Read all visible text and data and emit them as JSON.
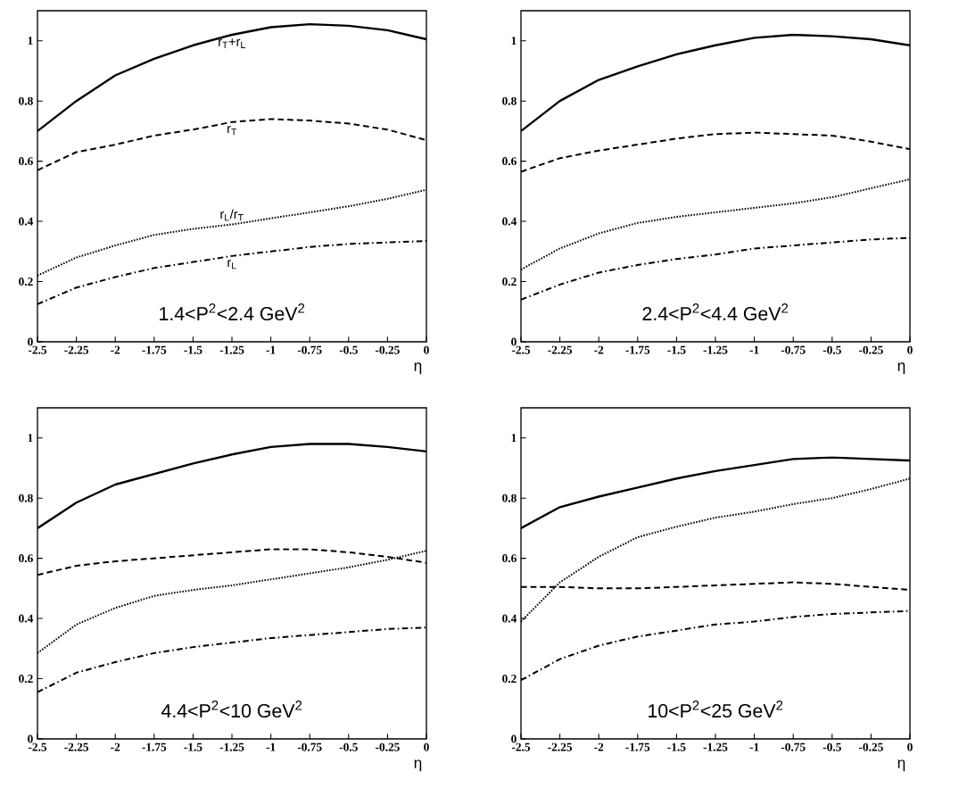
{
  "chart_data": [
    {
      "type": "line",
      "xlabel": "η",
      "annotations": [
        "1.4<P$^{2}$<2.4 GeV$^{2}$"
      ],
      "xlim": [
        -2.5,
        0
      ],
      "ylim": [
        0,
        1.1
      ],
      "xticks": [
        -2.5,
        -2.25,
        -2,
        -1.75,
        -1.5,
        -1.25,
        -1,
        -0.75,
        -0.5,
        -0.25,
        0
      ],
      "yticks": [
        0,
        0.2,
        0.4,
        0.6,
        0.8,
        1
      ],
      "x": [
        -2.5,
        -2.25,
        -2,
        -1.75,
        -1.5,
        -1.25,
        -1,
        -0.75,
        -0.5,
        -0.25,
        0
      ],
      "series": [
        {
          "name": "r$_{T}$+r$_{L}$",
          "color": "#000000",
          "line_style": "solid",
          "values": [
            0.7,
            0.8,
            0.885,
            0.94,
            0.985,
            1.02,
            1.045,
            1.055,
            1.05,
            1.035,
            1.005
          ]
        },
        {
          "name": "r$_{T}$",
          "color": "#000000",
          "line_style": "dashed",
          "values": [
            0.57,
            0.63,
            0.655,
            0.685,
            0.705,
            0.73,
            0.74,
            0.735,
            0.725,
            0.705,
            0.67
          ]
        },
        {
          "name": "r$_{L}$/r$_{T}$",
          "color": "#000000",
          "line_style": "dotted",
          "values": [
            0.22,
            0.28,
            0.32,
            0.355,
            0.375,
            0.39,
            0.41,
            0.43,
            0.45,
            0.475,
            0.505
          ]
        },
        {
          "name": "r$_{L}$",
          "color": "#000000",
          "line_style": "dashdot",
          "values": [
            0.125,
            0.18,
            0.215,
            0.245,
            0.265,
            0.285,
            0.3,
            0.315,
            0.325,
            0.33,
            0.335
          ]
        }
      ]
    },
    {
      "type": "line",
      "xlabel": "η",
      "annotations": [
        "2.4<P$^{2}$<4.4 GeV$^{2}$"
      ],
      "xlim": [
        -2.5,
        0
      ],
      "ylim": [
        0,
        1.1
      ],
      "xticks": [
        -2.5,
        -2.25,
        -2,
        -1.75,
        -1.5,
        -1.25,
        -1,
        -0.75,
        -0.5,
        -0.25,
        0
      ],
      "yticks": [
        0,
        0.2,
        0.4,
        0.6,
        0.8,
        1
      ],
      "x": [
        -2.5,
        -2.25,
        -2,
        -1.75,
        -1.5,
        -1.25,
        -1,
        -0.75,
        -0.5,
        -0.25,
        0
      ],
      "series": [
        {
          "color": "#000000",
          "line_style": "solid",
          "values": [
            0.7,
            0.8,
            0.87,
            0.915,
            0.955,
            0.985,
            1.01,
            1.02,
            1.015,
            1.005,
            0.985
          ]
        },
        {
          "color": "#000000",
          "line_style": "dashed",
          "values": [
            0.565,
            0.61,
            0.635,
            0.655,
            0.675,
            0.69,
            0.695,
            0.69,
            0.685,
            0.665,
            0.64
          ]
        },
        {
          "color": "#000000",
          "line_style": "dotted",
          "values": [
            0.24,
            0.31,
            0.36,
            0.395,
            0.415,
            0.43,
            0.445,
            0.46,
            0.48,
            0.51,
            0.54
          ]
        },
        {
          "color": "#000000",
          "line_style": "dashdot",
          "values": [
            0.14,
            0.19,
            0.23,
            0.255,
            0.275,
            0.29,
            0.31,
            0.32,
            0.33,
            0.34,
            0.345
          ]
        }
      ]
    },
    {
      "type": "line",
      "xlabel": "η",
      "annotations": [
        "4.4<P$^{2}$<10 GeV$^{2}$"
      ],
      "xlim": [
        -2.5,
        0
      ],
      "ylim": [
        0,
        1.1
      ],
      "xticks": [
        -2.5,
        -2.25,
        -2,
        -1.75,
        -1.5,
        -1.25,
        -1,
        -0.75,
        -0.5,
        -0.25,
        0
      ],
      "yticks": [
        0,
        0.2,
        0.4,
        0.6,
        0.8,
        1
      ],
      "x": [
        -2.5,
        -2.25,
        -2,
        -1.75,
        -1.5,
        -1.25,
        -1,
        -0.75,
        -0.5,
        -0.25,
        0
      ],
      "series": [
        {
          "color": "#000000",
          "line_style": "solid",
          "values": [
            0.7,
            0.785,
            0.845,
            0.88,
            0.915,
            0.945,
            0.97,
            0.98,
            0.98,
            0.97,
            0.955
          ]
        },
        {
          "color": "#000000",
          "line_style": "dashed",
          "values": [
            0.545,
            0.575,
            0.59,
            0.6,
            0.61,
            0.62,
            0.63,
            0.63,
            0.62,
            0.605,
            0.585
          ]
        },
        {
          "color": "#000000",
          "line_style": "dotted",
          "values": [
            0.285,
            0.38,
            0.435,
            0.475,
            0.495,
            0.51,
            0.53,
            0.55,
            0.57,
            0.595,
            0.625
          ]
        },
        {
          "color": "#000000",
          "line_style": "dashdot",
          "values": [
            0.155,
            0.22,
            0.255,
            0.285,
            0.305,
            0.32,
            0.335,
            0.345,
            0.355,
            0.365,
            0.37
          ]
        }
      ]
    },
    {
      "type": "line",
      "xlabel": "η",
      "annotations": [
        "10<P$^{2}$<25 GeV$^{2}$"
      ],
      "xlim": [
        -2.5,
        0
      ],
      "ylim": [
        0,
        1.1
      ],
      "xticks": [
        -2.5,
        -2.25,
        -2,
        -1.75,
        -1.5,
        -1.25,
        -1,
        -0.75,
        -0.5,
        -0.25,
        0
      ],
      "yticks": [
        0,
        0.2,
        0.4,
        0.6,
        0.8,
        1
      ],
      "x": [
        -2.5,
        -2.25,
        -2,
        -1.75,
        -1.5,
        -1.25,
        -1,
        -0.75,
        -0.5,
        -0.25,
        0
      ],
      "series": [
        {
          "color": "#000000",
          "line_style": "solid",
          "values": [
            0.7,
            0.77,
            0.805,
            0.835,
            0.865,
            0.89,
            0.91,
            0.93,
            0.935,
            0.93,
            0.925
          ]
        },
        {
          "color": "#000000",
          "line_style": "dashed",
          "values": [
            0.505,
            0.505,
            0.5,
            0.5,
            0.505,
            0.51,
            0.515,
            0.52,
            0.515,
            0.505,
            0.495
          ]
        },
        {
          "color": "#000000",
          "line_style": "dotted",
          "values": [
            0.39,
            0.52,
            0.605,
            0.67,
            0.705,
            0.735,
            0.755,
            0.78,
            0.8,
            0.83,
            0.865
          ]
        },
        {
          "color": "#000000",
          "line_style": "dashdot",
          "values": [
            0.195,
            0.265,
            0.31,
            0.34,
            0.36,
            0.38,
            0.39,
            0.405,
            0.415,
            0.42,
            0.425
          ]
        }
      ]
    }
  ]
}
